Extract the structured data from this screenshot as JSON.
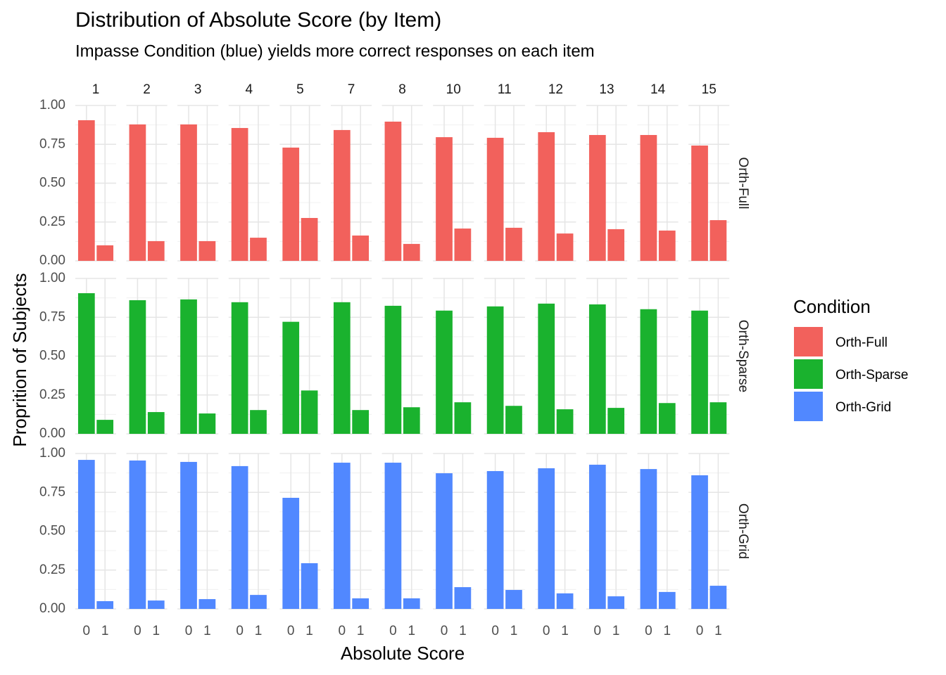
{
  "chart_data": {
    "type": "facet_bar",
    "title": "Distribution of Absolute Score (by Item)",
    "subtitle": "Impasse Condition (blue) yields more correct responses on each item",
    "x_label": "Absolute Score",
    "y_label": "Proprition of Subjects",
    "legend_title": "Condition",
    "legend_position": "right",
    "grid": true,
    "categories": [
      "0",
      "1"
    ],
    "facets": [
      "1",
      "2",
      "3",
      "4",
      "5",
      "7",
      "8",
      "10",
      "11",
      "12",
      "13",
      "14",
      "15"
    ],
    "ylim": [
      0,
      1
    ],
    "yticks": [
      {
        "value": 0,
        "label": "0.00"
      },
      {
        "value": 0.25,
        "label": "0.25"
      },
      {
        "value": 0.5,
        "label": "0.50"
      },
      {
        "value": 0.75,
        "label": "0.75"
      },
      {
        "value": 1,
        "label": "1.00"
      }
    ],
    "series": [
      {
        "name": "Orth-Full",
        "color": "#F2615C",
        "values": [
          [
            0.905,
            0.1
          ],
          [
            0.878,
            0.127
          ],
          [
            0.878,
            0.127
          ],
          [
            0.855,
            0.149
          ],
          [
            0.729,
            0.276
          ],
          [
            0.842,
            0.163
          ],
          [
            0.896,
            0.109
          ],
          [
            0.796,
            0.208
          ],
          [
            0.792,
            0.213
          ],
          [
            0.828,
            0.176
          ],
          [
            0.81,
            0.204
          ],
          [
            0.81,
            0.195
          ],
          [
            0.742,
            0.262
          ]
        ]
      },
      {
        "name": "Orth-Sparse",
        "color": "#1AB22E",
        "values": [
          [
            0.905,
            0.09
          ],
          [
            0.86,
            0.14
          ],
          [
            0.865,
            0.131
          ],
          [
            0.847,
            0.153
          ],
          [
            0.721,
            0.279
          ],
          [
            0.847,
            0.153
          ],
          [
            0.824,
            0.171
          ],
          [
            0.793,
            0.203
          ],
          [
            0.82,
            0.18
          ],
          [
            0.838,
            0.158
          ],
          [
            0.833,
            0.167
          ],
          [
            0.802,
            0.198
          ],
          [
            0.793,
            0.203
          ]
        ]
      },
      {
        "name": "Orth-Grid",
        "color": "#5188FF",
        "values": [
          [
            0.959,
            0.05
          ],
          [
            0.955,
            0.054
          ],
          [
            0.946,
            0.063
          ],
          [
            0.919,
            0.09
          ],
          [
            0.715,
            0.294
          ],
          [
            0.941,
            0.068
          ],
          [
            0.941,
            0.068
          ],
          [
            0.873,
            0.14
          ],
          [
            0.887,
            0.122
          ],
          [
            0.905,
            0.1
          ],
          [
            0.928,
            0.081
          ],
          [
            0.9,
            0.109
          ],
          [
            0.86,
            0.149
          ]
        ]
      }
    ]
  }
}
